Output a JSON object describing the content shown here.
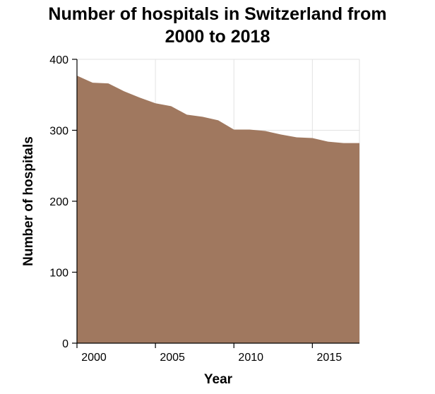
{
  "chart_data": {
    "type": "area",
    "title": "Number of hospitals in Switzerland from\n2000 to 2018",
    "xlabel": "Year",
    "ylabel": "Number of hospitals",
    "x": [
      2000,
      2001,
      2002,
      2003,
      2004,
      2005,
      2006,
      2007,
      2008,
      2009,
      2010,
      2011,
      2012,
      2013,
      2014,
      2015,
      2016,
      2017,
      2018
    ],
    "series": [
      {
        "values": [
          377,
          367,
          366,
          355,
          346,
          338,
          334,
          322,
          319,
          314,
          301,
          301,
          299,
          294,
          290,
          289,
          284,
          282,
          282
        ]
      }
    ],
    "xlim": [
      2000,
      2018
    ],
    "ylim": [
      0,
      400
    ],
    "xticks": [
      2000,
      2005,
      2010,
      2015
    ],
    "yticks": [
      0,
      100,
      200,
      300,
      400
    ],
    "grid": true,
    "colors": {
      "fill": "#a0785f",
      "grid": "#e2e2e2"
    }
  }
}
